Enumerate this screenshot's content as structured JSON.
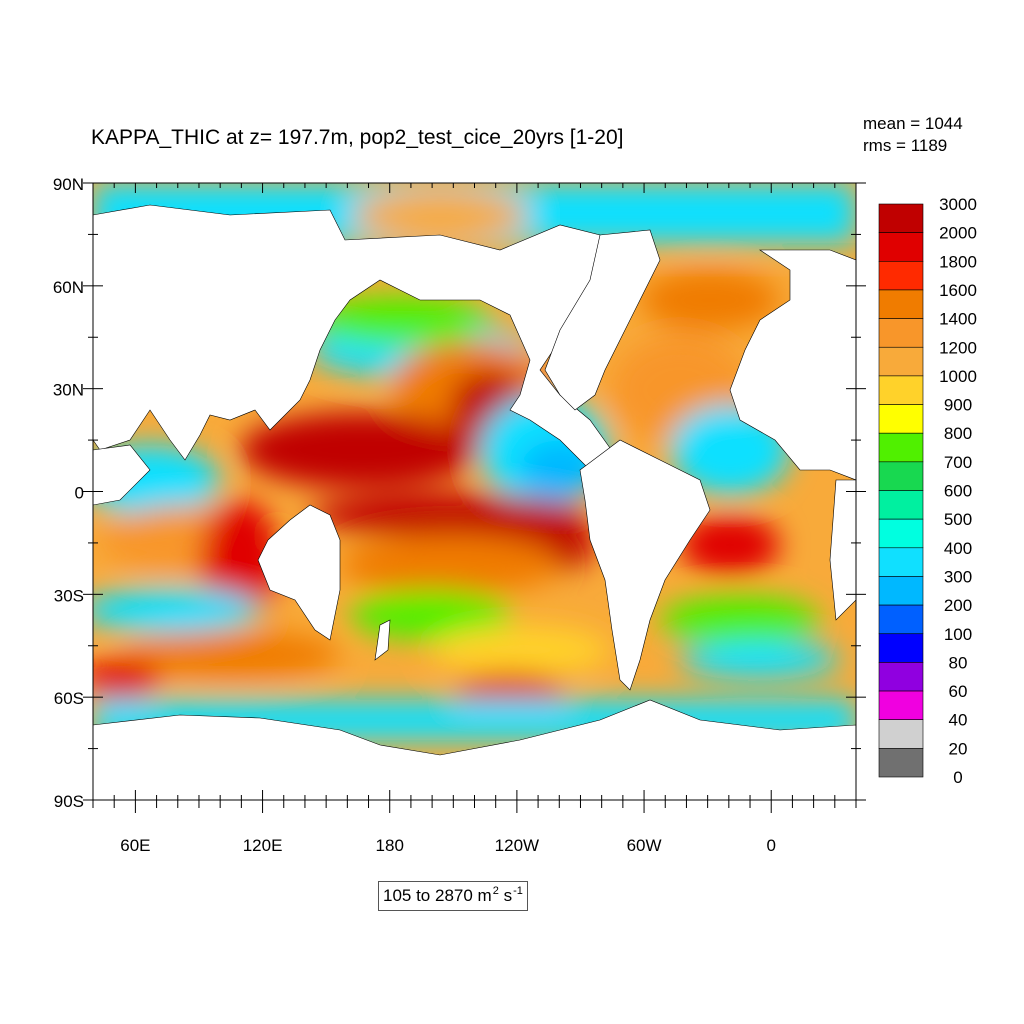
{
  "title": "KAPPA_THIC at z= 197.7m, pop2_test_cice_20yrs [1-20]",
  "stats": {
    "mean": "mean = 1044",
    "rms": "rms = 1189"
  },
  "range_box": {
    "range": "105 to 2870",
    "unit_base": "m",
    "unit_exp1": "2",
    "unit_mid": " s",
    "unit_exp2": "-1"
  },
  "lat_labels": [
    {
      "value": 90,
      "label": "90N"
    },
    {
      "value": 60,
      "label": "60N"
    },
    {
      "value": 30,
      "label": "30N"
    },
    {
      "value": 0,
      "label": "0"
    },
    {
      "value": -30,
      "label": "30S"
    },
    {
      "value": -60,
      "label": "60S"
    },
    {
      "value": -90,
      "label": "90S"
    }
  ],
  "lon_labels": [
    {
      "value": 60,
      "label": "60E"
    },
    {
      "value": 120,
      "label": "120E"
    },
    {
      "value": 180,
      "label": "180"
    },
    {
      "value": 240,
      "label": "120W"
    },
    {
      "value": 300,
      "label": "60W"
    },
    {
      "value": 360,
      "label": "0"
    }
  ],
  "lon_range": [
    40,
    400
  ],
  "lat_range": [
    -90,
    90
  ],
  "colorbar": {
    "levels": [
      "3000",
      "2000",
      "1800",
      "1600",
      "1400",
      "1200",
      "1000",
      "900",
      "800",
      "700",
      "600",
      "500",
      "400",
      "300",
      "200",
      "100",
      "80",
      "60",
      "40",
      "20",
      "0"
    ],
    "colors": [
      "#c00000",
      "#e00000",
      "#ff2a00",
      "#f07c00",
      "#f8962a",
      "#f8aa3a",
      "#ffd22a",
      "#ffff00",
      "#50f000",
      "#18d850",
      "#00f0a0",
      "#00ffe0",
      "#10e0ff",
      "#00b8ff",
      "#0060ff",
      "#0000ff",
      "#9000e0",
      "#f000e0",
      "#d0d0d0",
      "#707070"
    ]
  },
  "legend_colors": {
    "land": "#ffffff",
    "outline": "#000000"
  }
}
